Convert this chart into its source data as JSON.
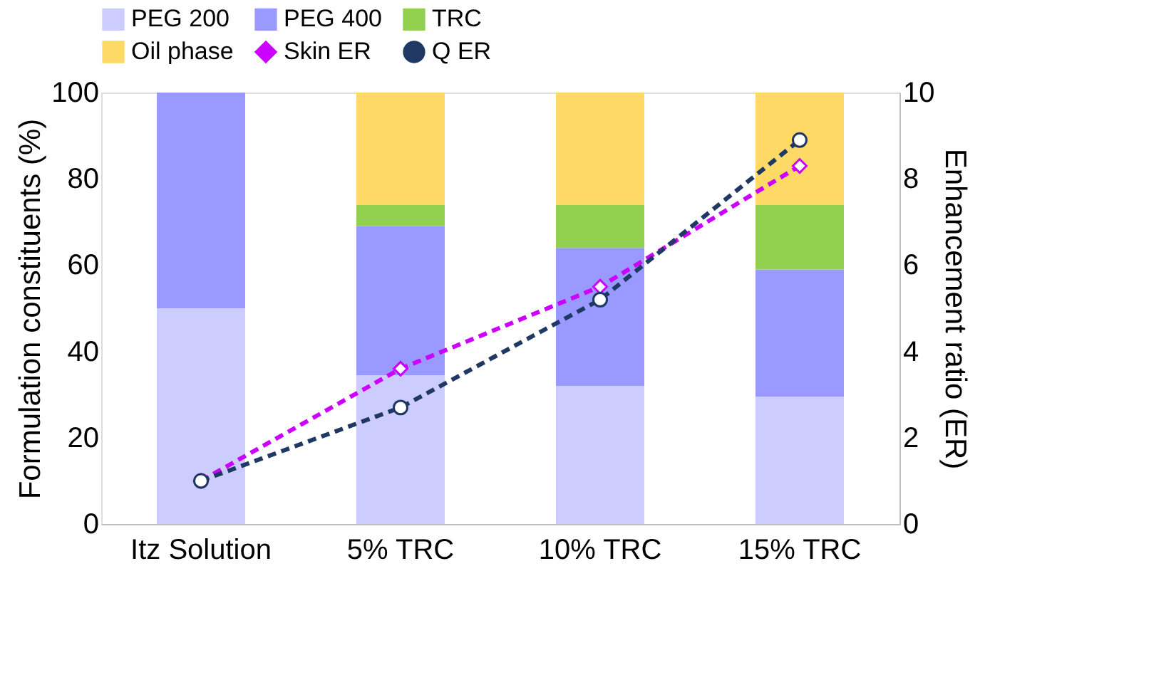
{
  "chart_data": {
    "type": "bar",
    "stacked": true,
    "categories": [
      "Itz Solution",
      "5% TRC",
      "10% TRC",
      "15% TRC"
    ],
    "series": [
      {
        "name": "PEG 200",
        "color": "#ccccff",
        "values": [
          50,
          34.5,
          32,
          29.5
        ]
      },
      {
        "name": "PEG 400",
        "color": "#9999ff",
        "values": [
          50,
          34.5,
          32,
          29.5
        ]
      },
      {
        "name": "TRC",
        "color": "#92d050",
        "values": [
          0,
          5,
          10,
          15
        ]
      },
      {
        "name": "Oil phase",
        "color": "#ffd966",
        "values": [
          0,
          26,
          26,
          26
        ]
      },
      {
        "name": "Skin ER",
        "type": "line",
        "axis": "y2",
        "color": "#cc00ff",
        "marker": "diamond",
        "line_style": "dashed",
        "values": [
          1.0,
          3.6,
          5.5,
          8.3
        ]
      },
      {
        "name": "Q ER",
        "type": "line",
        "axis": "y2",
        "color": "#1f3864",
        "marker": "circle",
        "line_style": "dashed",
        "values": [
          1.0,
          2.7,
          5.2,
          8.9
        ]
      }
    ],
    "ylabel": "Formulation constituents (%)",
    "y2label": "Enhancement ratio (ER)",
    "ylim": [
      0,
      100
    ],
    "yticks": [
      0,
      20,
      40,
      60,
      80,
      100
    ],
    "y2lim": [
      0,
      10
    ],
    "y2ticks": [
      0,
      2,
      4,
      6,
      8,
      10
    ],
    "grid": false,
    "legend": "top"
  }
}
